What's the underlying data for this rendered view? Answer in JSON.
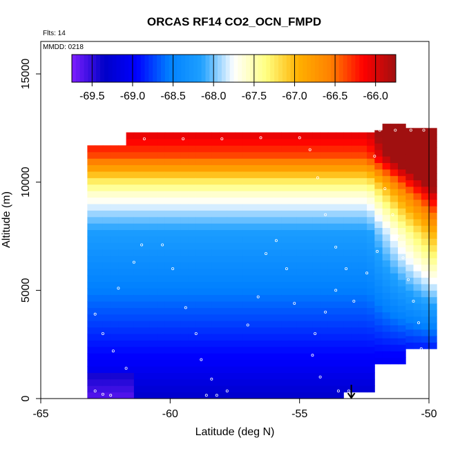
{
  "chart_data": {
    "type": "heatmap",
    "title": "ORCAS RF14 CO2_OCN_FMPD",
    "annotations": {
      "flights": "Flts: 14",
      "date": "MMDD: 0218"
    },
    "xlabel": "Latitude (deg N)",
    "ylabel": "Altitude (m)",
    "xlim": [
      -65,
      -50
    ],
    "ylim": [
      0,
      16500
    ],
    "x_ticks": [
      -65,
      -60,
      -55,
      -50
    ],
    "y_ticks": [
      0,
      5000,
      10000,
      15000
    ],
    "x_tick_labels": [
      "-65",
      "-60",
      "-55",
      "-50"
    ],
    "y_tick_labels": [
      "0",
      "5000",
      "10000",
      "15000"
    ],
    "colorbar": {
      "min": -69.75,
      "max": -65.75,
      "ticks": [
        -69.5,
        -69.0,
        -68.5,
        -68.0,
        -67.5,
        -67.0,
        -66.5,
        -66.0
      ],
      "tick_labels": [
        "-69.5",
        "-69.0",
        "-68.5",
        "-68.0",
        "-67.5",
        "-67.0",
        "-66.5",
        "-66.0"
      ],
      "colors": [
        "#7f1fff",
        "#0000c8",
        "#0000ff",
        "#0080ff",
        "#1ea0ff",
        "#ffffff",
        "#ffff80",
        "#ffb000",
        "#ff8000",
        "#ff0000",
        "#a01010"
      ]
    },
    "field": {
      "description_of_layers": "value by altitude band",
      "altitude_bands_m": [
        0,
        1500,
        3000,
        4500,
        6000,
        7500,
        8500,
        9300,
        10000,
        11000,
        12500
      ],
      "values": [
        -69.3,
        -69.0,
        -68.8,
        -68.6,
        -68.4,
        -68.2,
        -67.9,
        -67.6,
        -67.2,
        -66.4,
        -65.9
      ],
      "extent": {
        "lat_min": -63.2,
        "lat_max": -50.0,
        "alt_min": 0,
        "alt_max": 12500
      }
    },
    "flight_track": [
      [
        -62.3,
        12000
      ],
      [
        -61.0,
        12000
      ],
      [
        -59.5,
        12000
      ],
      [
        -58.0,
        12000
      ],
      [
        -56.5,
        12050
      ],
      [
        -55.0,
        12050
      ],
      [
        -54.6,
        11500
      ],
      [
        -54.3,
        10200
      ],
      [
        -54.0,
        8500
      ],
      [
        -53.6,
        7000
      ],
      [
        -53.2,
        6000
      ],
      [
        -53.6,
        5000
      ],
      [
        -54.0,
        4000
      ],
      [
        -54.4,
        3000
      ],
      [
        -54.5,
        2000
      ],
      [
        -54.2,
        1000
      ],
      [
        -53.5,
        350
      ],
      [
        -53.1,
        350
      ],
      [
        -62.9,
        3900
      ],
      [
        -62.6,
        3000
      ],
      [
        -62.2,
        2200
      ],
      [
        -61.7,
        1400
      ],
      [
        -62.0,
        5100
      ],
      [
        -61.4,
        6300
      ],
      [
        -61.1,
        7100
      ],
      [
        -60.3,
        7100
      ],
      [
        -59.9,
        6000
      ],
      [
        -59.4,
        4200
      ],
      [
        -59.0,
        3000
      ],
      [
        -58.8,
        1800
      ],
      [
        -58.4,
        900
      ],
      [
        -57.8,
        350
      ],
      [
        -57.0,
        3400
      ],
      [
        -56.6,
        4700
      ],
      [
        -56.3,
        6700
      ],
      [
        -55.9,
        7300
      ],
      [
        -55.5,
        6000
      ],
      [
        -55.2,
        4400
      ],
      [
        -52.1,
        11200
      ],
      [
        -51.7,
        9700
      ],
      [
        -51.4,
        8500
      ],
      [
        -51.2,
        7500
      ],
      [
        -51.0,
        6500
      ],
      [
        -50.8,
        5500
      ],
      [
        -50.6,
        4500
      ],
      [
        -50.4,
        3500
      ],
      [
        -50.3,
        2300
      ],
      [
        -52.0,
        6800
      ],
      [
        -52.4,
        5800
      ],
      [
        -52.9,
        4500
      ],
      [
        -51.9,
        12400
      ],
      [
        -51.3,
        12400
      ],
      [
        -50.7,
        12400
      ],
      [
        -50.2,
        12400
      ],
      [
        -62.9,
        350
      ],
      [
        -62.6,
        200
      ],
      [
        -62.3,
        150
      ],
      [
        -58.6,
        150
      ],
      [
        -58.2,
        150
      ]
    ],
    "arrow_at_lat": -53.0
  }
}
